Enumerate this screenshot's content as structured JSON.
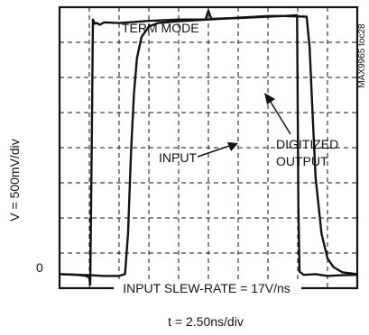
{
  "chart_data": {
    "type": "line",
    "title": "TERM MODE",
    "xlabel": "t = 2.50ns/div",
    "ylabel": "V = 500mV/div",
    "y_zero_label": "0",
    "figure_code": "MAX9965 toc28",
    "annotation_input": "INPUT",
    "annotation_output_line1": "DIGITIZED",
    "annotation_output_line2": "OUTPUT",
    "note": "INPUT SLEW-RATE = 17V/ns",
    "x_divisions": 10,
    "y_divisions": 8,
    "grid": true,
    "x_unit": "divisions (2.50ns/div)",
    "y_unit": "divisions (500mV/div)",
    "series": [
      {
        "id": "input",
        "x": [
          0.0,
          0.6,
          0.9,
          1.0,
          1.03,
          1.08,
          1.12,
          1.18,
          1.25,
          1.35,
          1.5,
          2.0,
          3.0,
          4.0,
          4.9,
          5.0,
          5.1,
          6.0,
          7.0,
          7.5,
          7.98,
          8.02,
          8.06,
          8.2,
          8.6,
          9.0,
          9.5,
          10.0
        ],
        "values": [
          0.05,
          0.03,
          0.0,
          -0.05,
          -0.25,
          3.5,
          7.3,
          7.18,
          7.2,
          7.15,
          7.22,
          7.2,
          7.26,
          7.3,
          7.3,
          7.55,
          7.32,
          7.34,
          7.38,
          7.4,
          7.42,
          2.0,
          0.12,
          0.03,
          0.05,
          0.0,
          0.02,
          0.03
        ]
      },
      {
        "id": "digitized_output",
        "x": [
          0.0,
          1.0,
          1.5,
          2.0,
          2.2,
          2.3,
          2.4,
          2.5,
          2.6,
          2.75,
          3.0,
          3.3,
          3.6,
          4.0,
          5.0,
          6.0,
          7.0,
          7.5,
          8.3,
          8.4,
          8.5,
          8.6,
          8.8,
          9.0,
          9.2,
          9.5,
          10.0
        ],
        "values": [
          0.05,
          0.02,
          0.0,
          0.0,
          0.05,
          1.2,
          3.5,
          5.2,
          6.2,
          6.8,
          7.1,
          7.2,
          7.22,
          7.25,
          7.3,
          7.35,
          7.4,
          7.4,
          7.38,
          6.5,
          4.6,
          2.8,
          1.2,
          0.5,
          0.25,
          0.1,
          0.05
        ]
      }
    ]
  }
}
